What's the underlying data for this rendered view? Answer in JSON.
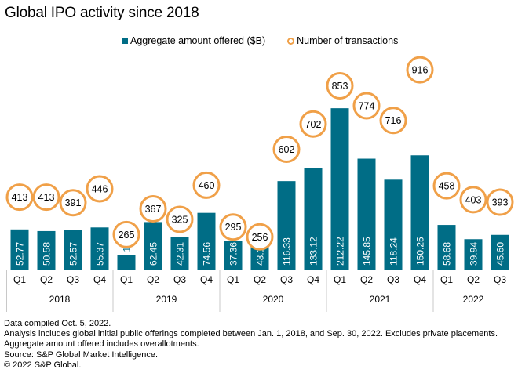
{
  "chart_data": {
    "type": "bar",
    "title": "Global IPO activity since 2018",
    "xlabel": "",
    "ylabel": "",
    "grid": false,
    "legend_position": "top-center",
    "categories": [
      "Q1",
      "Q2",
      "Q3",
      "Q4",
      "Q1",
      "Q2",
      "Q3",
      "Q4",
      "Q1",
      "Q2",
      "Q3",
      "Q4",
      "Q1",
      "Q2",
      "Q3",
      "Q4",
      "Q1",
      "Q2",
      "Q3"
    ],
    "year_groups": [
      {
        "label": "2018",
        "count": 4
      },
      {
        "label": "2019",
        "count": 4
      },
      {
        "label": "2020",
        "count": 4
      },
      {
        "label": "2021",
        "count": 4
      },
      {
        "label": "2022",
        "count": 3
      }
    ],
    "series": [
      {
        "name": "Aggregate amount offered ($B)",
        "type": "bar",
        "color": "#006d86",
        "values": [
          52.77,
          50.58,
          52.57,
          55.37,
          18.91,
          62.45,
          42.31,
          74.56,
          37.36,
          43.1,
          116.33,
          133.12,
          212.22,
          145.85,
          118.24,
          150.25,
          58.68,
          39.94,
          45.6
        ],
        "labels": [
          "52.77",
          "50.58",
          "52.57",
          "55.37",
          "18.91",
          "62.45",
          "42.31",
          "74.56",
          "37.36",
          "43.10",
          "116.33",
          "133.12",
          "212.22",
          "145.85",
          "118.24",
          "150.25",
          "58.68",
          "39.94",
          "45.60"
        ]
      },
      {
        "name": "Number of transactions",
        "type": "scatter",
        "color": "#f0a048",
        "values": [
          413,
          413,
          391,
          446,
          265,
          367,
          325,
          460,
          295,
          256,
          602,
          702,
          853,
          774,
          716,
          916,
          458,
          403,
          393
        ],
        "labels": [
          "413",
          "413",
          "391",
          "446",
          "265",
          "367",
          "325",
          "460",
          "295",
          "256",
          "602",
          "702",
          "853",
          "774",
          "716",
          "916",
          "458",
          "403",
          "393"
        ]
      }
    ],
    "ylim_bars": [
      0,
      240
    ],
    "ylim_transactions": [
      0,
      1000
    ]
  },
  "legend": {
    "bars_label": "Aggregate amount offered ($B)",
    "circles_label": "Number of transactions"
  },
  "footnotes": [
    "Data compiled Oct. 5, 2022.",
    "Analysis includes global initial public offerings completed between Jan. 1, 2018, and Sep. 30, 2022. Excludes private placements.",
    "Aggregate amount offered includes overallotments.",
    "Source: S&P Global Market Intelligence.",
    "© 2022 S&P Global."
  ]
}
